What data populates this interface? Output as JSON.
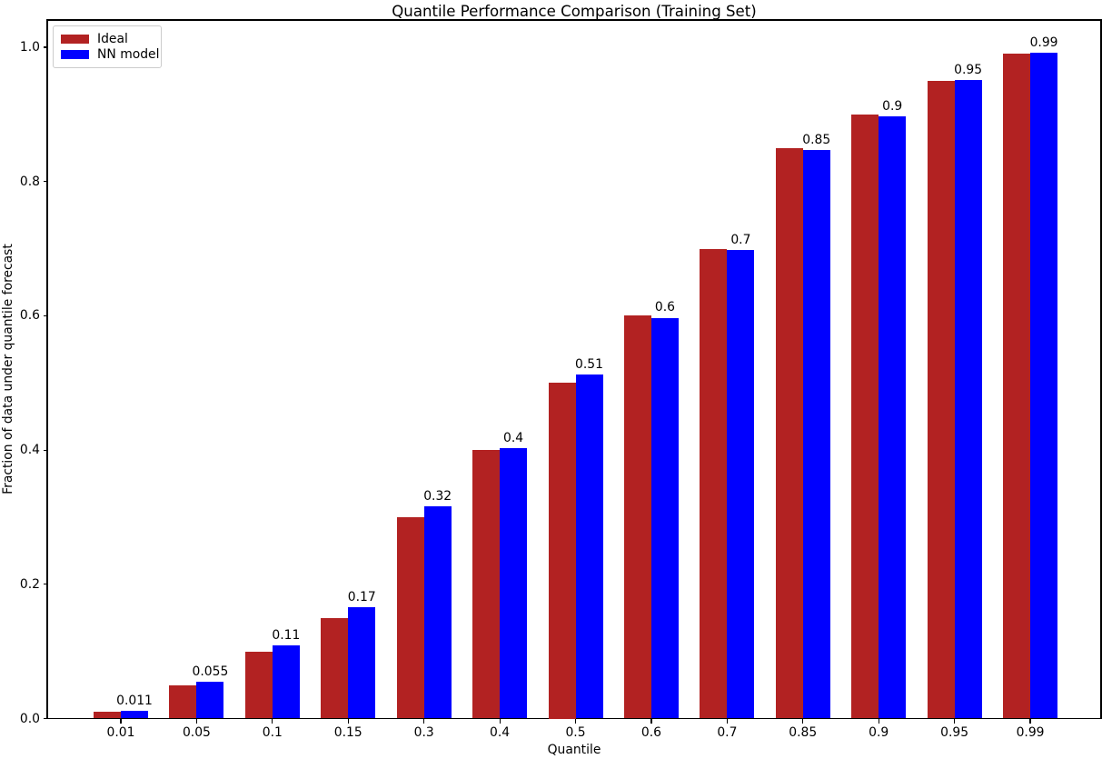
{
  "chart_data": {
    "type": "bar",
    "title": "Quantile Performance Comparison (Training Set)",
    "xlabel": "Quantile",
    "ylabel": "Fraction of data under quantile forecast",
    "categories": [
      "0.01",
      "0.05",
      "0.1",
      "0.15",
      "0.3",
      "0.4",
      "0.5",
      "0.6",
      "0.7",
      "0.85",
      "0.9",
      "0.95",
      "0.99"
    ],
    "series": [
      {
        "name": "Ideal",
        "color": "#b22222",
        "values": [
          0.01,
          0.05,
          0.1,
          0.15,
          0.3,
          0.4,
          0.5,
          0.6,
          0.7,
          0.85,
          0.9,
          0.95,
          0.99
        ]
      },
      {
        "name": "NN model",
        "color": "#0000ff",
        "values": [
          0.011,
          0.055,
          0.109,
          0.166,
          0.316,
          0.403,
          0.512,
          0.597,
          0.698,
          0.847,
          0.897,
          0.951,
          0.992
        ]
      }
    ],
    "bar_labels": [
      "0.011",
      "0.055",
      "0.11",
      "0.17",
      "0.32",
      "0.4",
      "0.51",
      "0.6",
      "0.7",
      "0.85",
      "0.9",
      "0.95",
      "0.99"
    ],
    "yticks": [
      "0.0",
      "0.2",
      "0.4",
      "0.6",
      "0.8",
      "1.0"
    ],
    "ylim": [
      0.0,
      1.041
    ],
    "legend_position": "upper left",
    "grid": false,
    "axis_color": "#000000",
    "background_color": "#ffffff"
  }
}
